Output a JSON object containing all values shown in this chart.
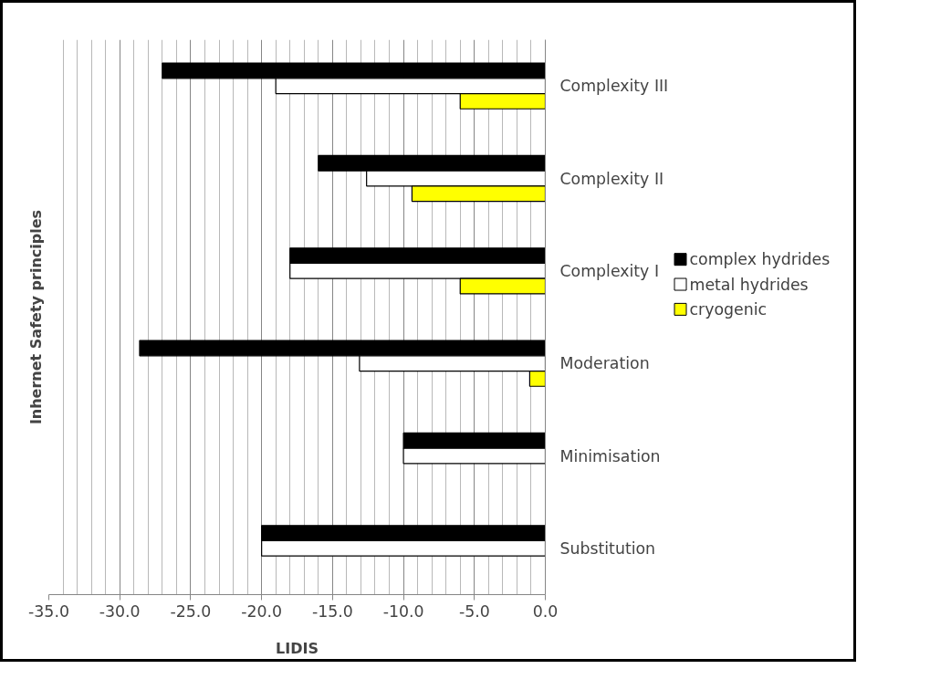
{
  "chart_data": {
    "type": "bar",
    "orientation": "horizontal",
    "xlabel": "LIDIS",
    "ylabel": "Inhernet Safety principles",
    "categories": [
      "Complexity III",
      "Complexity II",
      "Complexity I",
      "Moderation",
      "Minimisation",
      "Substitution"
    ],
    "series": [
      {
        "name": "complex hydrides",
        "color": "#000000",
        "values": [
          -27,
          -16,
          -18,
          -28.6,
          -10,
          -20
        ]
      },
      {
        "name": "metal hydrides",
        "color": "#ffffff",
        "values": [
          -19,
          -12.6,
          -18,
          -13.1,
          -10,
          -20
        ]
      },
      {
        "name": "cryogenic",
        "color": "#ffff00",
        "values": [
          -6,
          -9.4,
          -6,
          -1.1,
          null,
          null
        ]
      }
    ],
    "xlim": [
      -35,
      0
    ],
    "xticks": [
      {
        "value": -35,
        "label": "-35.0"
      },
      {
        "value": -30,
        "label": "-30.0"
      },
      {
        "value": -25,
        "label": "-25.0"
      },
      {
        "value": -20,
        "label": "-20.0"
      },
      {
        "value": -15,
        "label": "-15.0"
      },
      {
        "value": -10,
        "label": "-10.0"
      },
      {
        "value": -5,
        "label": "-5.0"
      },
      {
        "value": 0,
        "label": "0.0"
      }
    ],
    "grid": "x",
    "legend": "right"
  }
}
